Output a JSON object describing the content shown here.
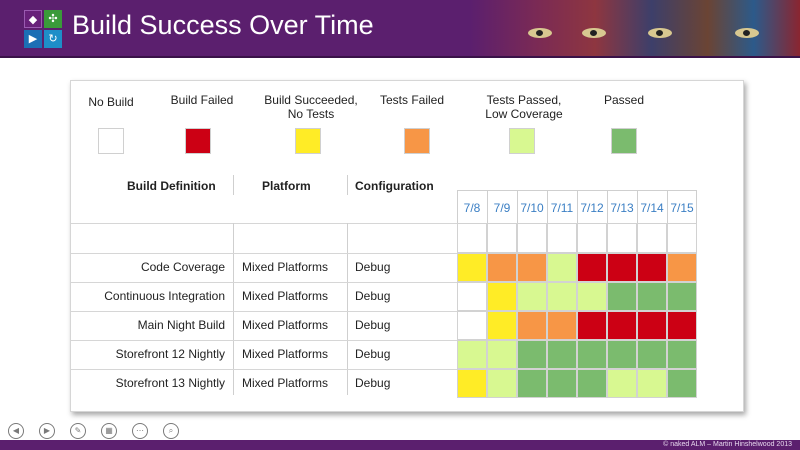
{
  "header": {
    "title": "Build Success Over Time",
    "logo_icons": [
      "visual-studio-icon",
      "team-icon",
      "release-icon",
      "sync-icon"
    ]
  },
  "legend": [
    {
      "label": "No Build",
      "color": "#ffffff"
    },
    {
      "label": "Build Failed",
      "color": "#cc0014"
    },
    {
      "label": "Build Succeeded,\nNo Tests",
      "color": "#ffec26"
    },
    {
      "label": "Tests Failed",
      "color": "#f79646"
    },
    {
      "label": "Tests Passed,\nLow Coverage",
      "color": "#d8f891"
    },
    {
      "label": "Passed",
      "color": "#7bbb6e"
    }
  ],
  "table": {
    "headers": {
      "definition": "Build Definition",
      "platform": "Platform",
      "configuration": "Configuration"
    },
    "dates": [
      "7/8",
      "7/9",
      "7/10",
      "7/11",
      "7/12",
      "7/13",
      "7/14",
      "7/15"
    ],
    "rows": [
      {
        "definition": "Code Coverage",
        "platform": "Mixed Platforms",
        "configuration": "Debug",
        "status": [
          "succeeded_no_tests",
          "tests_failed",
          "tests_failed",
          "low_coverage",
          "build_failed",
          "build_failed",
          "build_failed",
          "tests_failed"
        ]
      },
      {
        "definition": "Continuous Integration",
        "platform": "Mixed Platforms",
        "configuration": "Debug",
        "status": [
          "no_build",
          "succeeded_no_tests",
          "low_coverage",
          "low_coverage",
          "low_coverage",
          "passed",
          "passed",
          "passed"
        ]
      },
      {
        "definition": "Main Night Build",
        "platform": "Mixed Platforms",
        "configuration": "Debug",
        "status": [
          "no_build",
          "succeeded_no_tests",
          "tests_failed",
          "tests_failed",
          "build_failed",
          "build_failed",
          "build_failed",
          "build_failed"
        ]
      },
      {
        "definition": "Storefront 12 Nightly",
        "platform": "Mixed Platforms",
        "configuration": "Debug",
        "status": [
          "low_coverage",
          "low_coverage",
          "passed",
          "passed",
          "passed",
          "passed",
          "passed",
          "passed"
        ]
      },
      {
        "definition": "Storefront 13 Nightly",
        "platform": "Mixed Platforms",
        "configuration": "Debug",
        "status": [
          "succeeded_no_tests",
          "low_coverage",
          "passed",
          "passed",
          "passed",
          "low_coverage",
          "low_coverage",
          "passed"
        ]
      }
    ]
  },
  "status_colors": {
    "no_build": "#ffffff",
    "build_failed": "#cc0014",
    "succeeded_no_tests": "#ffec26",
    "tests_failed": "#f79646",
    "low_coverage": "#d8f891",
    "passed": "#7bbb6e"
  },
  "footer": {
    "copyright": "© naked ALM – Martin Hinshelwood 2013",
    "nav_icons": [
      "previous-icon",
      "next-icon",
      "pen-icon",
      "slides-icon",
      "more-icon",
      "zoom-icon"
    ]
  }
}
